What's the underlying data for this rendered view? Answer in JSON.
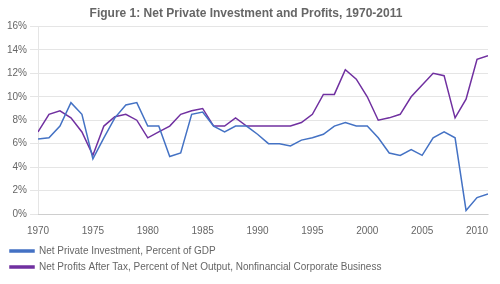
{
  "chart_data": {
    "type": "line",
    "title": "Figure 1: Net Private Investment and Profits, 1970-2011",
    "x": [
      1970,
      1971,
      1972,
      1973,
      1974,
      1975,
      1976,
      1977,
      1978,
      1979,
      1980,
      1981,
      1982,
      1983,
      1984,
      1985,
      1986,
      1987,
      1988,
      1989,
      1990,
      1991,
      1992,
      1993,
      1994,
      1995,
      1996,
      1997,
      1998,
      1999,
      2000,
      2001,
      2002,
      2003,
      2004,
      2005,
      2006,
      2007,
      2008,
      2009,
      2010,
      2011
    ],
    "series": [
      {
        "name": "Net Private Investment, Percent of GDP",
        "color": "#4472C4",
        "values": [
          6.4,
          6.5,
          7.5,
          9.5,
          8.5,
          4.7,
          6.5,
          8.2,
          9.3,
          9.5,
          7.5,
          7.5,
          4.9,
          5.2,
          8.5,
          8.7,
          7.5,
          7.0,
          7.5,
          7.5,
          6.8,
          6.0,
          6.0,
          5.8,
          6.3,
          6.5,
          6.8,
          7.5,
          7.8,
          7.5,
          7.5,
          6.5,
          5.2,
          5.0,
          5.5,
          5.0,
          6.5,
          7.0,
          6.5,
          0.3,
          1.4,
          1.7
        ]
      },
      {
        "name": "Net Profits After Tax, Percent of Net Output, Nonfinancial Corporate Business",
        "color": "#7030A0",
        "values": [
          7.0,
          8.5,
          8.8,
          8.2,
          7.0,
          5.0,
          7.5,
          8.3,
          8.5,
          8.0,
          6.5,
          7.0,
          7.5,
          8.5,
          8.8,
          9.0,
          7.5,
          7.5,
          8.2,
          7.5,
          7.5,
          7.5,
          7.5,
          7.5,
          7.8,
          8.5,
          10.2,
          10.2,
          12.3,
          11.5,
          10.0,
          8.0,
          8.2,
          8.5,
          10.0,
          11.0,
          12.0,
          11.8,
          8.2,
          9.8,
          13.2,
          13.5
        ]
      }
    ],
    "xlim": [
      1970,
      2011
    ],
    "xticks": [
      1970,
      1975,
      1980,
      1985,
      1990,
      1995,
      2000,
      2005,
      2010
    ],
    "ylim": [
      0,
      16
    ],
    "yticks": [
      {
        "value": 0,
        "label": "0%"
      },
      {
        "value": 2,
        "label": "2%"
      },
      {
        "value": 4,
        "label": "4%"
      },
      {
        "value": 6,
        "label": "6%"
      },
      {
        "value": 8,
        "label": "8%"
      },
      {
        "value": 10,
        "label": "10%"
      },
      {
        "value": 12,
        "label": "12%"
      },
      {
        "value": 14,
        "label": "14%"
      },
      {
        "value": 16,
        "label": "16%"
      }
    ],
    "grid": true,
    "legend": "bottom"
  }
}
